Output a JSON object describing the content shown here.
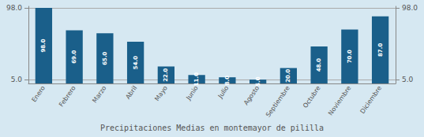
{
  "chart_data": {
    "type": "bar",
    "title": "Precipitaciones Medias en montemayor de pililla",
    "categories": [
      "Enero",
      "Febrero",
      "Marzo",
      "Abril",
      "Mayo",
      "Junio",
      "Julio",
      "Agosto",
      "Septiembre",
      "Octubre",
      "Noviembre",
      "Diciembre"
    ],
    "values": [
      98.0,
      69.0,
      65.0,
      54.0,
      22.0,
      11.0,
      8.0,
      5.0,
      20.0,
      48.0,
      70.0,
      87.0
    ],
    "value_labels": [
      "98.0",
      "69.0",
      "65.0",
      "54.0",
      "22.0",
      "11.0",
      "8.0",
      "5.0",
      "20.0",
      "48.0",
      "70.0",
      "87.0"
    ],
    "data_labels": true,
    "color": "#1a5f8a",
    "ylim": [
      0,
      100
    ],
    "yticks": [
      {
        "value": 5.0,
        "label": "5.0"
      },
      {
        "value": 98.0,
        "label": "98.0"
      }
    ],
    "grid": true
  }
}
